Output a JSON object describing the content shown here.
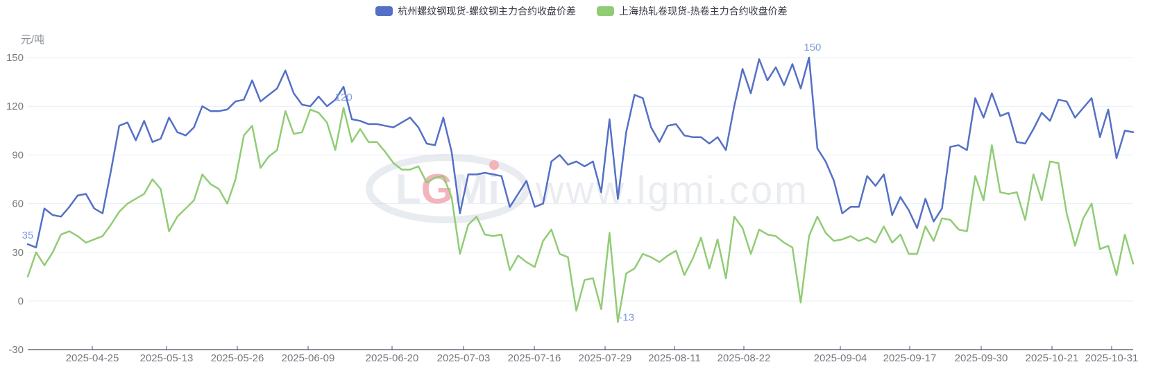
{
  "legend": {
    "items": [
      {
        "label": "杭州螺纹钢现货-螺纹钢主力合约收盘价差",
        "color": "#5470C6"
      },
      {
        "label": "上海热轧卷现货-热卷主力合约收盘价差",
        "color": "#91CC75"
      }
    ]
  },
  "watermark": {
    "logo_text": "LGMi",
    "url_text": "www.lgmi.com",
    "logo_gray": "#c9d0dd",
    "logo_red": "#e0515f",
    "url_gray": "#ced3de"
  },
  "colors": {
    "series_blue": "#5470C6",
    "series_green": "#91CC75",
    "grid_line": "#e7ecf5",
    "axis_line": "#4d5462",
    "axis_label": "#75797f",
    "annotation": "#7e9cdb",
    "axis_name": "#8a8f98",
    "background": "#ffffff"
  },
  "chart_data": {
    "type": "line",
    "title": "",
    "unit_label": "元/吨",
    "grid": "horizontal-only",
    "legend_position": "top-center",
    "y_axis": {
      "min": -30,
      "max": 150,
      "interval": 30,
      "ticks": [
        150,
        120,
        90,
        60,
        30,
        0,
        -30
      ]
    },
    "x_axis": {
      "tick_labels": [
        "2025-04-25",
        "2025-05-13",
        "2025-05-26",
        "2025-06-09",
        "2025-06-20",
        "2025-07-03",
        "2025-07-16",
        "2025-07-29",
        "2025-08-11",
        "2025-08-22",
        "2025-09-04",
        "2025-09-17",
        "2025-09-30",
        "2025-10-21",
        "2025-10-31"
      ]
    },
    "series": [
      {
        "name": "杭州螺纹钢现货-螺纹钢主力合约收盘价差",
        "color": "#5470C6",
        "values": [
          35,
          33,
          57,
          53,
          52,
          58,
          65,
          66,
          57,
          54,
          80,
          108,
          110,
          99,
          111,
          98,
          100,
          113,
          104,
          102,
          107,
          120,
          117,
          117,
          118,
          123,
          124,
          136,
          123,
          127,
          131,
          142,
          128,
          121,
          120,
          126,
          120,
          124,
          132,
          112,
          111,
          109,
          109,
          108,
          107,
          110,
          113,
          107,
          97,
          96,
          113,
          92,
          54,
          78,
          78,
          79,
          78,
          77,
          58,
          66,
          74,
          58,
          60,
          86,
          90,
          84,
          86,
          83,
          86,
          67,
          112,
          63,
          104,
          127,
          125,
          107,
          98,
          108,
          109,
          102,
          101,
          101,
          97,
          101,
          93,
          120,
          143,
          128,
          149,
          136,
          144,
          133,
          146,
          131,
          150,
          94,
          86,
          74,
          54,
          58,
          58,
          77,
          71,
          78,
          53,
          64,
          56,
          45,
          63,
          49,
          57,
          95,
          96,
          93,
          125,
          113,
          128,
          114,
          116,
          98,
          97,
          106,
          116,
          111,
          124,
          123,
          113,
          119,
          125,
          101,
          118,
          88,
          105,
          104
        ]
      },
      {
        "name": "上海热轧卷现货-热卷主力合约收盘价差",
        "color": "#91CC75",
        "values": [
          15,
          30,
          22,
          30,
          41,
          43,
          40,
          36,
          38,
          40,
          47,
          55,
          60,
          63,
          66,
          75,
          69,
          43,
          52,
          57,
          62,
          78,
          72,
          69,
          60,
          75,
          102,
          108,
          82,
          89,
          93,
          117,
          103,
          104,
          118,
          116,
          110,
          93,
          119,
          98,
          106,
          98,
          98,
          92,
          85,
          81,
          81,
          83,
          73,
          76,
          77,
          64,
          29,
          47,
          52,
          41,
          40,
          41,
          19,
          28,
          24,
          21,
          37,
          44,
          29,
          27,
          -6,
          13,
          14,
          -5,
          42,
          -13,
          17,
          20,
          29,
          27,
          24,
          28,
          31,
          16,
          26,
          39,
          20,
          38,
          14,
          52,
          45,
          29,
          44,
          41,
          40,
          36,
          33,
          -1,
          40,
          52,
          42,
          37,
          38,
          40,
          37,
          39,
          36,
          46,
          36,
          41,
          29,
          29,
          46,
          37,
          51,
          50,
          44,
          43,
          77,
          62,
          96,
          67,
          66,
          67,
          50,
          78,
          62,
          86,
          85,
          54,
          34,
          51,
          60,
          32,
          34,
          16,
          41,
          23
        ]
      }
    ],
    "annotations": [
      {
        "series": 0,
        "point_index": 0,
        "text": "35"
      },
      {
        "series": 0,
        "point_index": 36,
        "text": "120"
      },
      {
        "series": 0,
        "point_index": 94,
        "text": "150"
      },
      {
        "series": 1,
        "point_index": 71,
        "text": "-13"
      }
    ]
  }
}
